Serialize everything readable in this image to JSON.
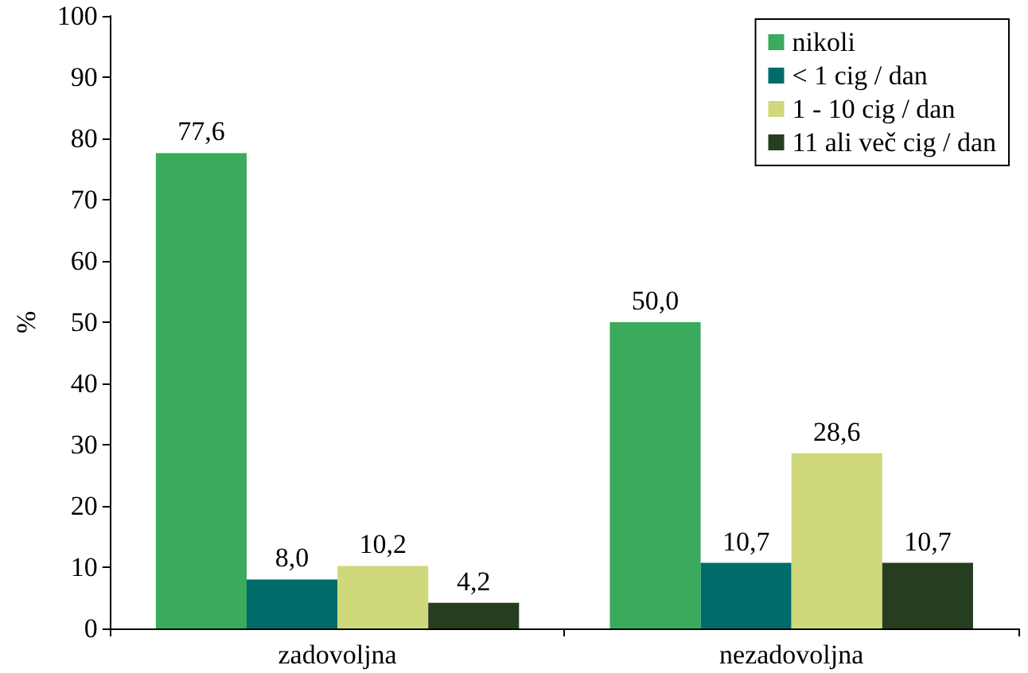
{
  "chart_data": {
    "type": "bar",
    "ylabel": "%",
    "categories": [
      "zadovoljna",
      "nezadovoljna"
    ],
    "series": [
      {
        "name": "nikoli",
        "color": "#3aaa5c",
        "values": [
          77.6,
          50.0
        ],
        "value_labels": [
          "77,6",
          "50,0"
        ]
      },
      {
        "name": "< 1 cig / dan",
        "color": "#006b6b",
        "values": [
          8.0,
          10.7
        ],
        "value_labels": [
          "8,0",
          "10,7"
        ]
      },
      {
        "name": "1 - 10 cig / dan",
        "color": "#cfd87a",
        "values": [
          10.2,
          28.6
        ],
        "value_labels": [
          "10,2",
          "28,6"
        ]
      },
      {
        "name": "11 ali več cig / dan",
        "color": "#263d20",
        "values": [
          4.2,
          10.7
        ],
        "value_labels": [
          "4,2",
          "10,7"
        ]
      }
    ],
    "ylim": [
      0,
      100
    ],
    "yticks": [
      0,
      10,
      20,
      30,
      40,
      50,
      60,
      70,
      80,
      90,
      100
    ],
    "grid": false,
    "legend": "top right"
  }
}
